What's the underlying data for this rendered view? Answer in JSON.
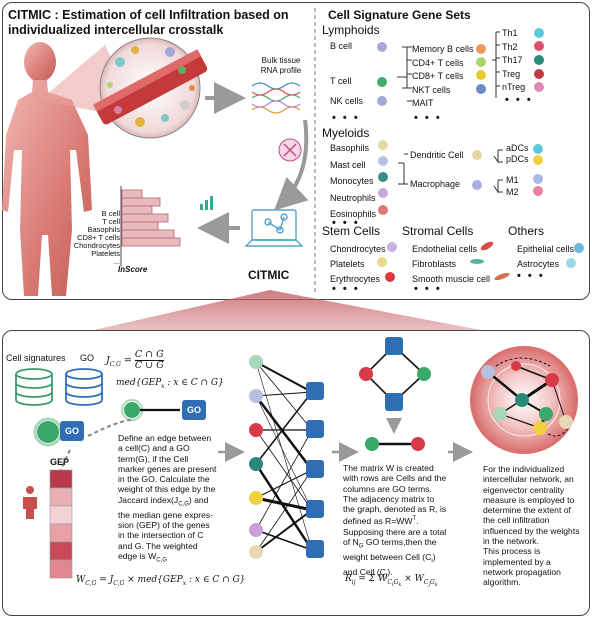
{
  "top": {
    "title_line1": "CITMIC : Estimation of cell Infiltration based on",
    "title_line2": "individualized intercellular crosstalk",
    "bulk_line1": "Bulk tissue",
    "bulk_line2": "RNA profile",
    "citmic": "CITMIC",
    "inscore": "InScore",
    "bar_labels": [
      "B cell",
      "T cell",
      "Basophils",
      "CD8+ T cells",
      "Chondrocytes",
      "Platelets",
      "..."
    ]
  },
  "sets": {
    "title": "Cell Signature Gene Sets",
    "lymphoids": "Lymphoids",
    "lymph_main": [
      "B cell",
      "T cell",
      "NK cells"
    ],
    "lymph_sub": [
      "Memory B cells",
      "CD4+ T cells",
      "CD8+ T cells",
      "NKT cells",
      "MAIT"
    ],
    "th": [
      "Th1",
      "Th2",
      "Th17",
      "Treg",
      "nTreg"
    ],
    "myeloids": "Myeloids",
    "myeloid_main": [
      "Basophils",
      "Mast cell",
      "Monocytes",
      "Neutrophils",
      "Eosinophils"
    ],
    "dendritic": "Dendritic Cell",
    "macrophage": "Macrophage",
    "dc_sub": [
      "aDCs",
      "pDCs"
    ],
    "mac_sub": [
      "M1",
      "M2"
    ],
    "stem": "Stem Cells",
    "stem_items": [
      "Chondrocytes",
      "Platelets",
      "Erythrocytes"
    ],
    "stromal": "Stromal Cells",
    "stromal_items": [
      "Endothelial cells",
      "Fibroblasts",
      "Smooth muscle cell"
    ],
    "others": "Others",
    "others_items": [
      "Epithelial cells",
      "Astrocytes"
    ],
    "ellipsis": "• • •"
  },
  "bottom": {
    "cell_signatures": "Cell signatures",
    "go": "GO",
    "gep": "GEP",
    "jaccard": "J",
    "formula1": "C ∩ G",
    "formula1_den": "C ∪ G",
    "formula2": "med{GEP",
    "formula3": "W",
    "desc1": "Define an edge between a cell(C) and a GO term(G), if the Cell marker genes are present in the GO. Calculate the weight of this edge by the Jaccard index(J",
    "desc1_lines": [
      "Define an edge between",
      "a cell(C) and a GO",
      "term(G), if the Cell",
      "marker genes are present",
      "in the GO. Calculate the",
      "weight of this edge by the",
      "Jaccard index(J",
      "the median gene expres-",
      "sion (GEP) of the genes",
      "in the intersection of C",
      "and G. The weighted",
      "edge is W"
    ],
    "desc2_lines": [
      "The matrix W is created",
      "with rows are Cells and the",
      "columns are GO terms.",
      "The adjacency matrix to",
      "the graph, denoted as R, is",
      "defined as R=WW",
      "Supposing there are a total",
      "of N",
      "weight between Cell (C",
      "and Cell (C"
    ],
    "desc3_lines": [
      "For the individualized",
      "intercellular network, an",
      "eigenvector centrality",
      "measure is employed to",
      "determine the extent of",
      "the cell infiltration",
      "influenced by the weights in the network.",
      "This process is",
      "implemented by a",
      "network propagation",
      "algorithm."
    ]
  },
  "colors": {
    "go_blue": "#2f6db5",
    "edge_green": "#2aa76a",
    "gep_red": "#b83a4a",
    "bar_red": "#c9808a"
  }
}
